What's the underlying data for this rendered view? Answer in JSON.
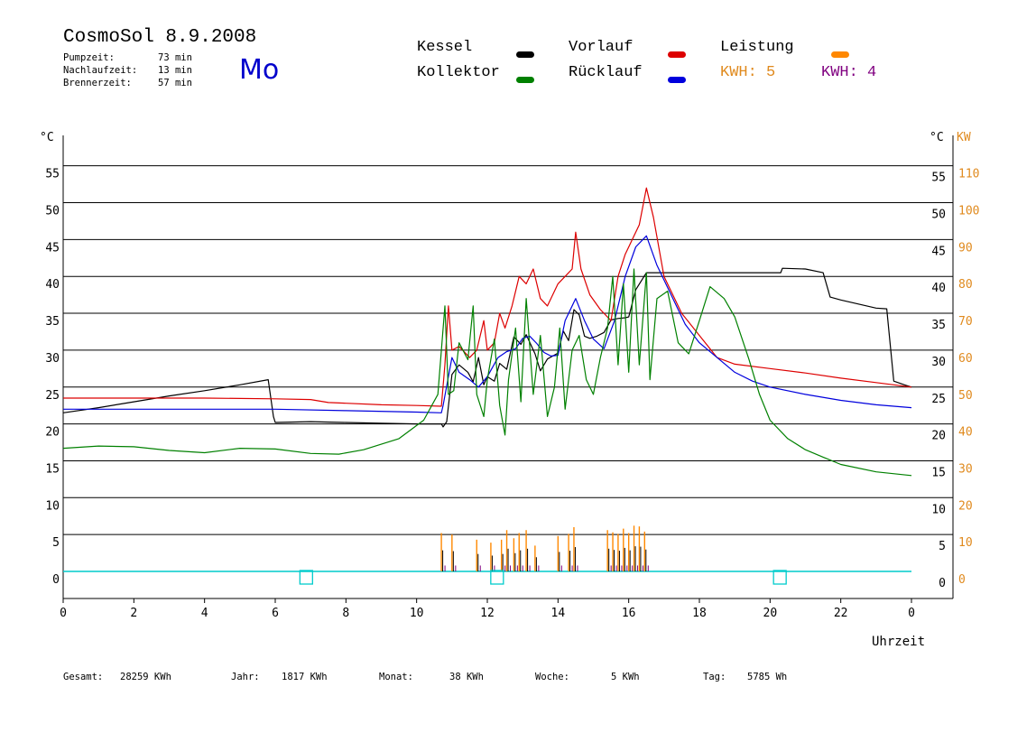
{
  "header": {
    "title": "CosmoSol 8.9.2008",
    "weekday": "Mo",
    "weekday_color": "#0000cc",
    "stats": [
      {
        "label": "Pumpzeit:",
        "value": "73 min"
      },
      {
        "label": "Nachlaufzeit:",
        "value": "13 min"
      },
      {
        "label": "Brennerzeit:",
        "value": "57 min"
      }
    ]
  },
  "legend": [
    {
      "label": "Kessel",
      "color": "#000000"
    },
    {
      "label": "Vorlauf",
      "color": "#dd0000"
    },
    {
      "label": "Leistung",
      "color": "#ff8800"
    },
    {
      "label": "Kollektor",
      "color": "#008000"
    },
    {
      "label": "Rücklauf",
      "color": "#0000dd"
    }
  ],
  "kwh": [
    {
      "label": "KWH: 5",
      "color": "#e08a1e"
    },
    {
      "label": "KWH: 4",
      "color": "#800080"
    }
  ],
  "footer": [
    {
      "label": "Gesamt:",
      "value": "28259 KWh"
    },
    {
      "label": "Jahr:",
      "value": "1817 KWh"
    },
    {
      "label": "Monat:",
      "value": "38 KWh"
    },
    {
      "label": "Woche:",
      "value": "5 KWh"
    },
    {
      "label": "Tag:",
      "value": "5785 Wh"
    }
  ],
  "chart_data": {
    "type": "line",
    "xlabel": "Uhrzeit",
    "ylabel_left": "°C",
    "ylabel_right": "°C",
    "ylabel_right2": "KW",
    "xlim": [
      0,
      24
    ],
    "ylim": [
      -4,
      58
    ],
    "x_ticks": [
      "0",
      "2",
      "4",
      "6",
      "8",
      "10",
      "12",
      "14",
      "16",
      "18",
      "20",
      "22",
      "0"
    ],
    "y_ticks": [
      0,
      5,
      10,
      15,
      20,
      25,
      30,
      35,
      40,
      45,
      50,
      55
    ],
    "kw_ticks": [
      0,
      10,
      20,
      30,
      40,
      50,
      60,
      70,
      80,
      90,
      100,
      110
    ],
    "grid": "horizontal",
    "series": [
      {
        "name": "Kessel",
        "color": "#000000",
        "points": [
          [
            0,
            21.5
          ],
          [
            1,
            22.2
          ],
          [
            2,
            23
          ],
          [
            3,
            23.8
          ],
          [
            4,
            24.5
          ],
          [
            5,
            25.3
          ],
          [
            5.8,
            26
          ],
          [
            5.95,
            21
          ],
          [
            6,
            20.2
          ],
          [
            7,
            20.3
          ],
          [
            8,
            20.2
          ],
          [
            9,
            20.1
          ],
          [
            10,
            20
          ],
          [
            10.7,
            20
          ],
          [
            10.75,
            19.6
          ],
          [
            10.85,
            20.3
          ],
          [
            11,
            26.7
          ],
          [
            11.2,
            28
          ],
          [
            11.45,
            27
          ],
          [
            11.6,
            25.7
          ],
          [
            11.75,
            29
          ],
          [
            11.9,
            25.3
          ],
          [
            12,
            26.4
          ],
          [
            12.2,
            25.8
          ],
          [
            12.35,
            28.2
          ],
          [
            12.55,
            27.4
          ],
          [
            12.75,
            31.8
          ],
          [
            12.95,
            30.8
          ],
          [
            13.1,
            32.1
          ],
          [
            13.35,
            29.5
          ],
          [
            13.5,
            27.2
          ],
          [
            13.7,
            28.8
          ],
          [
            13.85,
            29.2
          ],
          [
            14.0,
            29.6
          ],
          [
            14.15,
            32.6
          ],
          [
            14.3,
            31.3
          ],
          [
            14.45,
            35.5
          ],
          [
            14.6,
            34.8
          ],
          [
            14.75,
            31.9
          ],
          [
            14.9,
            31.6
          ],
          [
            15.1,
            31.9
          ],
          [
            15.3,
            32.4
          ],
          [
            15.5,
            34.1
          ],
          [
            15.7,
            34.3
          ],
          [
            15.9,
            34.4
          ],
          [
            16.0,
            34.5
          ],
          [
            16.2,
            38.2
          ],
          [
            16.5,
            40.5
          ],
          [
            17,
            40.5
          ],
          [
            18,
            40.5
          ],
          [
            19,
            40.5
          ],
          [
            20.3,
            40.5
          ],
          [
            20.35,
            41.1
          ],
          [
            21,
            41
          ],
          [
            21.5,
            40.5
          ],
          [
            21.7,
            37.2
          ],
          [
            22,
            36.8
          ],
          [
            23,
            35.7
          ],
          [
            23.3,
            35.6
          ],
          [
            23.5,
            25.8
          ],
          [
            23.8,
            25.3
          ],
          [
            24,
            25.0
          ]
        ]
      },
      {
        "name": "Vorlauf",
        "color": "#dd0000",
        "points": [
          [
            0,
            23.5
          ],
          [
            2,
            23.5
          ],
          [
            4,
            23.5
          ],
          [
            6,
            23.4
          ],
          [
            7,
            23.3
          ],
          [
            7.5,
            22.9
          ],
          [
            8,
            22.8
          ],
          [
            9,
            22.6
          ],
          [
            10,
            22.5
          ],
          [
            10.7,
            22.4
          ],
          [
            10.8,
            28
          ],
          [
            10.9,
            36
          ],
          [
            11,
            30
          ],
          [
            11.2,
            30.5
          ],
          [
            11.5,
            29
          ],
          [
            11.7,
            30
          ],
          [
            11.9,
            34
          ],
          [
            12,
            30
          ],
          [
            12.2,
            31
          ],
          [
            12.35,
            35
          ],
          [
            12.5,
            33
          ],
          [
            12.7,
            36
          ],
          [
            12.9,
            40
          ],
          [
            13.1,
            39
          ],
          [
            13.3,
            41
          ],
          [
            13.5,
            37
          ],
          [
            13.7,
            36
          ],
          [
            14.0,
            39
          ],
          [
            14.2,
            40
          ],
          [
            14.4,
            41
          ],
          [
            14.5,
            46
          ],
          [
            14.65,
            41
          ],
          [
            14.9,
            37.5
          ],
          [
            15.2,
            35.5
          ],
          [
            15.5,
            34
          ],
          [
            15.7,
            40
          ],
          [
            15.9,
            43
          ],
          [
            16.1,
            45
          ],
          [
            16.3,
            47
          ],
          [
            16.5,
            52
          ],
          [
            16.7,
            48
          ],
          [
            17.0,
            40
          ],
          [
            17.5,
            35
          ],
          [
            18,
            32
          ],
          [
            18.5,
            29
          ],
          [
            19,
            28.1
          ],
          [
            20,
            27.5
          ],
          [
            21,
            26.9
          ],
          [
            22,
            26.2
          ],
          [
            23,
            25.6
          ],
          [
            24,
            25.0
          ]
        ]
      },
      {
        "name": "Rücklauf",
        "color": "#0000dd",
        "points": [
          [
            0,
            22
          ],
          [
            2,
            22
          ],
          [
            4,
            22
          ],
          [
            6,
            22
          ],
          [
            8,
            21.8
          ],
          [
            10,
            21.6
          ],
          [
            10.7,
            21.5
          ],
          [
            10.75,
            22.5
          ],
          [
            11,
            29
          ],
          [
            11.2,
            27
          ],
          [
            11.5,
            26
          ],
          [
            11.75,
            25
          ],
          [
            12,
            26.4
          ],
          [
            12.3,
            29
          ],
          [
            12.55,
            29.8
          ],
          [
            12.8,
            30.2
          ],
          [
            13.0,
            31.6
          ],
          [
            13.2,
            31.9
          ],
          [
            13.4,
            30.9
          ],
          [
            13.6,
            29.7
          ],
          [
            13.8,
            29.2
          ],
          [
            14.0,
            29.3
          ],
          [
            14.2,
            34
          ],
          [
            14.5,
            37
          ],
          [
            14.75,
            34
          ],
          [
            15.0,
            31.5
          ],
          [
            15.3,
            30.2
          ],
          [
            15.6,
            34
          ],
          [
            15.9,
            40
          ],
          [
            16.2,
            44
          ],
          [
            16.5,
            45.5
          ],
          [
            16.8,
            41.5
          ],
          [
            17.2,
            37.5
          ],
          [
            17.6,
            33.5
          ],
          [
            18,
            31
          ],
          [
            18.5,
            29
          ],
          [
            19,
            27
          ],
          [
            19.5,
            25.8
          ],
          [
            20,
            25
          ],
          [
            21,
            24.0
          ],
          [
            22,
            23.2
          ],
          [
            23,
            22.6
          ],
          [
            24,
            22.2
          ]
        ]
      },
      {
        "name": "Kollektor",
        "color": "#008000",
        "points": [
          [
            0,
            16.7
          ],
          [
            1,
            17
          ],
          [
            2,
            16.9
          ],
          [
            3,
            16.4
          ],
          [
            4,
            16.1
          ],
          [
            5,
            16.7
          ],
          [
            6,
            16.6
          ],
          [
            7,
            16
          ],
          [
            7.8,
            15.9
          ],
          [
            8.5,
            16.5
          ],
          [
            9.5,
            18
          ],
          [
            10.2,
            20.5
          ],
          [
            10.6,
            24
          ],
          [
            10.8,
            36
          ],
          [
            10.9,
            24
          ],
          [
            11.05,
            24.5
          ],
          [
            11.2,
            31
          ],
          [
            11.45,
            28.7
          ],
          [
            11.6,
            36
          ],
          [
            11.7,
            24
          ],
          [
            11.9,
            21
          ],
          [
            12,
            26
          ],
          [
            12.2,
            31.5
          ],
          [
            12.35,
            22.5
          ],
          [
            12.5,
            18.5
          ],
          [
            12.6,
            26
          ],
          [
            12.8,
            33
          ],
          [
            12.95,
            23
          ],
          [
            13.1,
            37
          ],
          [
            13.3,
            24
          ],
          [
            13.5,
            32
          ],
          [
            13.7,
            21
          ],
          [
            13.9,
            25
          ],
          [
            14.05,
            33
          ],
          [
            14.2,
            22
          ],
          [
            14.4,
            30
          ],
          [
            14.6,
            32
          ],
          [
            14.8,
            26
          ],
          [
            15.0,
            24
          ],
          [
            15.2,
            29
          ],
          [
            15.4,
            33
          ],
          [
            15.55,
            40
          ],
          [
            15.7,
            28
          ],
          [
            15.85,
            39
          ],
          [
            16.0,
            27
          ],
          [
            16.15,
            41
          ],
          [
            16.3,
            28
          ],
          [
            16.5,
            40.5
          ],
          [
            16.6,
            26
          ],
          [
            16.8,
            37
          ],
          [
            17.1,
            38
          ],
          [
            17.4,
            31
          ],
          [
            17.7,
            29.5
          ],
          [
            18,
            34
          ],
          [
            18.3,
            38.6
          ],
          [
            18.7,
            37
          ],
          [
            19.0,
            34.5
          ],
          [
            19.4,
            28.8
          ],
          [
            19.7,
            24
          ],
          [
            20.0,
            20.5
          ],
          [
            20.5,
            18
          ],
          [
            21,
            16.5
          ],
          [
            21.5,
            15.5
          ],
          [
            22,
            14.5
          ],
          [
            23,
            13.5
          ],
          [
            24,
            13.0
          ]
        ]
      }
    ],
    "power_spikes": [
      {
        "x": 10.7,
        "y": 5.2
      },
      {
        "x": 11.0,
        "y": 5.0
      },
      {
        "x": 11.7,
        "y": 4.3
      },
      {
        "x": 12.1,
        "y": 3.9
      },
      {
        "x": 12.4,
        "y": 4.3
      },
      {
        "x": 12.55,
        "y": 5.6
      },
      {
        "x": 12.75,
        "y": 4.5
      },
      {
        "x": 12.9,
        "y": 5.2
      },
      {
        "x": 13.1,
        "y": 5.6
      },
      {
        "x": 13.35,
        "y": 3.5
      },
      {
        "x": 14.0,
        "y": 4.8
      },
      {
        "x": 14.3,
        "y": 5.1
      },
      {
        "x": 14.45,
        "y": 6.0
      },
      {
        "x": 15.4,
        "y": 5.6
      },
      {
        "x": 15.55,
        "y": 5.3
      },
      {
        "x": 15.7,
        "y": 5.1
      },
      {
        "x": 15.85,
        "y": 5.8
      },
      {
        "x": 16.0,
        "y": 5.2
      },
      {
        "x": 16.15,
        "y": 6.2
      },
      {
        "x": 16.3,
        "y": 6.1
      },
      {
        "x": 16.45,
        "y": 5.4
      }
    ],
    "markers_cyan": [
      {
        "x": 6.8
      },
      {
        "x": 12.2
      },
      {
        "x": 20.2
      }
    ],
    "baseline_color": "#00cccc"
  }
}
